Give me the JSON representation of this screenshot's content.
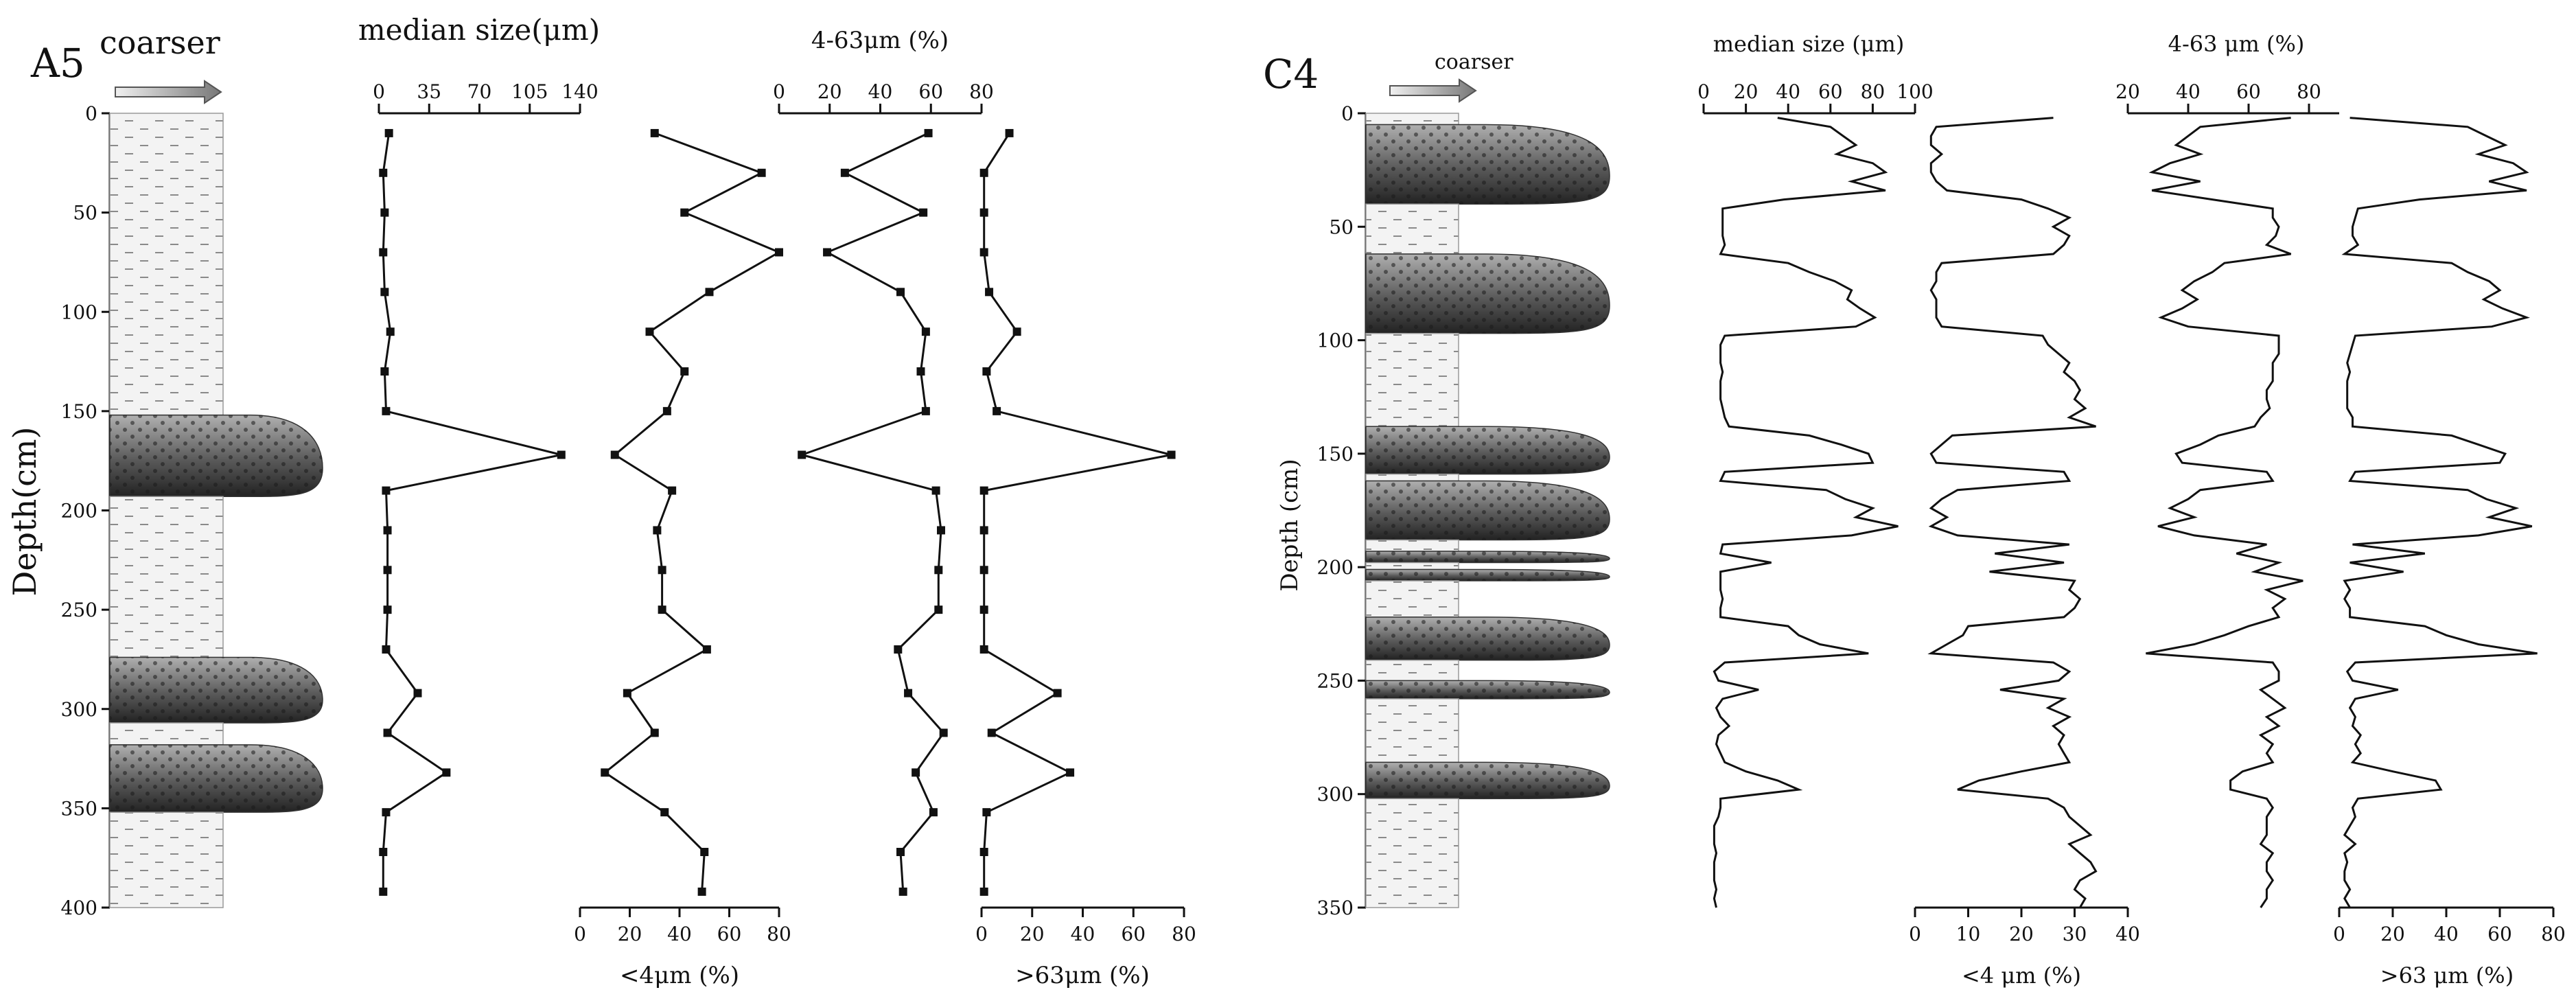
{
  "chart_data": [
    {
      "id": "A5",
      "type": "line",
      "panel_label": "A5",
      "coarser_label": "coarser",
      "ylabel": "Depth(cm)",
      "ylim": [
        0,
        400
      ],
      "yticks": [
        0,
        50,
        100,
        150,
        200,
        250,
        300,
        350,
        400
      ],
      "lithology": [
        {
          "type": "fine",
          "from": 0,
          "to": 152
        },
        {
          "type": "sand",
          "from": 152,
          "to": 193
        },
        {
          "type": "fine",
          "from": 193,
          "to": 274
        },
        {
          "type": "sand",
          "from": 274,
          "to": 307
        },
        {
          "type": "fine",
          "from": 307,
          "to": 318
        },
        {
          "type": "sand",
          "from": 318,
          "to": 352
        },
        {
          "type": "fine",
          "from": 352,
          "to": 400
        }
      ],
      "depth": [
        10,
        30,
        50,
        70,
        90,
        110,
        130,
        150,
        172,
        190,
        210,
        230,
        250,
        270,
        292,
        312,
        332,
        352,
        372,
        392
      ],
      "panels": [
        {
          "name": "median size",
          "label": "median size(μm)",
          "label_pos": "top",
          "xlim": [
            0,
            140
          ],
          "xticks": [
            0,
            35,
            70,
            105,
            140
          ],
          "values": [
            7,
            3,
            4,
            3,
            4,
            8,
            4,
            5,
            127,
            5,
            6,
            6,
            6,
            5,
            27,
            6,
            47,
            5,
            3,
            3
          ]
        },
        {
          "name": "<4μm",
          "label": "<4μm (%)",
          "label_pos": "bottom",
          "xlim": [
            0,
            80
          ],
          "xticks": [
            0,
            20,
            40,
            60,
            80
          ],
          "values": [
            30,
            73,
            42,
            80,
            52,
            28,
            42,
            35,
            14,
            37,
            31,
            33,
            33,
            51,
            19,
            30,
            10,
            34,
            50,
            49
          ]
        },
        {
          "name": "4-63μm",
          "label": "4-63μm (%)",
          "label_pos": "top",
          "xlim": [
            0,
            80
          ],
          "xticks": [
            0,
            20,
            40,
            60,
            80
          ],
          "values": [
            59,
            26,
            57,
            19,
            48,
            58,
            56,
            58,
            9,
            62,
            64,
            63,
            63,
            47,
            51,
            65,
            54,
            61,
            48,
            49
          ]
        },
        {
          "name": ">63μm",
          "label": ">63μm (%)",
          "label_pos": "bottom",
          "xlim": [
            0,
            80
          ],
          "xticks": [
            0,
            20,
            40,
            60,
            80
          ],
          "values": [
            11,
            1,
            1,
            1,
            3,
            14,
            2,
            6,
            75,
            1,
            1,
            1,
            1,
            1,
            30,
            4,
            35,
            2,
            1,
            1
          ]
        }
      ]
    },
    {
      "id": "C4",
      "type": "line",
      "panel_label": "C4",
      "coarser_label": "coarser",
      "ylabel": "Depth (cm)",
      "ylim": [
        0,
        350
      ],
      "yticks": [
        0,
        50,
        100,
        150,
        200,
        250,
        300,
        350
      ],
      "lithology": [
        {
          "type": "fine",
          "from": 0,
          "to": 5
        },
        {
          "type": "sand",
          "from": 5,
          "to": 40
        },
        {
          "type": "fine",
          "from": 40,
          "to": 62
        },
        {
          "type": "sand",
          "from": 62,
          "to": 97
        },
        {
          "type": "fine",
          "from": 97,
          "to": 138
        },
        {
          "type": "sand",
          "from": 138,
          "to": 159
        },
        {
          "type": "fine",
          "from": 159,
          "to": 162
        },
        {
          "type": "sand",
          "from": 162,
          "to": 188
        },
        {
          "type": "fine",
          "from": 188,
          "to": 193
        },
        {
          "type": "sand",
          "from": 193,
          "to": 198
        },
        {
          "type": "fine",
          "from": 198,
          "to": 201
        },
        {
          "type": "sand",
          "from": 201,
          "to": 206
        },
        {
          "type": "fine",
          "from": 206,
          "to": 222
        },
        {
          "type": "sand",
          "from": 222,
          "to": 241
        },
        {
          "type": "fine",
          "from": 241,
          "to": 250
        },
        {
          "type": "sand",
          "from": 250,
          "to": 258
        },
        {
          "type": "fine",
          "from": 258,
          "to": 286
        },
        {
          "type": "sand",
          "from": 286,
          "to": 302
        },
        {
          "type": "fine",
          "from": 302,
          "to": 350
        }
      ],
      "depth": [
        2,
        6,
        10,
        14,
        18,
        22,
        26,
        30,
        34,
        38,
        42,
        46,
        50,
        54,
        58,
        62,
        66,
        70,
        74,
        78,
        82,
        86,
        90,
        94,
        98,
        102,
        106,
        110,
        114,
        118,
        122,
        126,
        130,
        134,
        138,
        142,
        146,
        150,
        154,
        158,
        162,
        166,
        170,
        174,
        178,
        182,
        186,
        190,
        194,
        198,
        202,
        206,
        210,
        214,
        218,
        222,
        226,
        230,
        234,
        238,
        242,
        246,
        250,
        254,
        258,
        262,
        266,
        270,
        274,
        278,
        282,
        286,
        290,
        294,
        298,
        302,
        306,
        310,
        314,
        318,
        322,
        326,
        330,
        334,
        338,
        342,
        346,
        350
      ],
      "panels": [
        {
          "name": "median size",
          "label": "median size (μm)",
          "label_pos": "top",
          "xlim": [
            0,
            100
          ],
          "xticks": [
            0,
            20,
            40,
            60,
            80,
            100
          ],
          "values": [
            35,
            60,
            66,
            72,
            63,
            80,
            86,
            70,
            86,
            38,
            9,
            9,
            9,
            9,
            10,
            8,
            40,
            50,
            62,
            70,
            68,
            74,
            81,
            72,
            10,
            8,
            8,
            8,
            9,
            8,
            8,
            8,
            9,
            10,
            12,
            50,
            65,
            78,
            80,
            10,
            8,
            58,
            67,
            80,
            72,
            92,
            70,
            9,
            8,
            32,
            8,
            8,
            8,
            9,
            8,
            8,
            40,
            45,
            55,
            78,
            10,
            5,
            7,
            26,
            9,
            6,
            8,
            12,
            7,
            6,
            8,
            10,
            20,
            35,
            45,
            8,
            8,
            7,
            5,
            5,
            5,
            6,
            5,
            5,
            5,
            6,
            5,
            6
          ]
        },
        {
          "name": "<4 μm",
          "label": "<4 μm (%)",
          "label_pos": "bottom",
          "xlim": [
            0,
            40
          ],
          "xticks": [
            0,
            10,
            20,
            30,
            40
          ],
          "values": [
            26,
            4,
            3,
            3,
            5,
            3,
            3,
            4,
            6,
            20,
            25,
            29,
            26,
            29,
            28,
            26,
            5,
            4,
            4,
            3,
            4,
            4,
            4,
            5,
            24,
            25,
            27,
            29,
            28,
            30,
            31,
            30,
            32,
            29,
            34,
            7,
            5,
            3,
            4,
            28,
            29,
            8,
            5,
            3,
            6,
            3,
            8,
            29,
            15,
            28,
            14,
            30,
            29,
            31,
            30,
            28,
            10,
            9,
            6,
            3,
            26,
            29,
            27,
            16,
            28,
            25,
            29,
            26,
            28,
            27,
            28,
            29,
            20,
            12,
            8,
            25,
            28,
            29,
            31,
            33,
            29,
            31,
            33,
            34,
            31,
            30,
            32,
            31
          ]
        },
        {
          "name": "4-63 μm",
          "label": "4-63 μm (%)",
          "label_pos": "top",
          "xlim": [
            20,
            90
          ],
          "xticks": [
            20,
            40,
            60,
            80
          ],
          "values": [
            74,
            44,
            40,
            36,
            44,
            34,
            28,
            44,
            28,
            48,
            68,
            68,
            70,
            69,
            66,
            74,
            52,
            48,
            42,
            38,
            43,
            38,
            31,
            40,
            70,
            70,
            70,
            68,
            68,
            68,
            66,
            66,
            67,
            64,
            62,
            50,
            44,
            36,
            38,
            66,
            68,
            44,
            40,
            34,
            42,
            30,
            42,
            66,
            56,
            70,
            62,
            78,
            66,
            72,
            68,
            70,
            60,
            52,
            42,
            26,
            68,
            70,
            70,
            64,
            68,
            72,
            66,
            70,
            64,
            68,
            66,
            68,
            58,
            54,
            54,
            66,
            68,
            66,
            66,
            66,
            64,
            68,
            66,
            66,
            68,
            66,
            66,
            64
          ]
        },
        {
          "name": ">63 μm",
          "label": ">63 μm (%)",
          "label_pos": "bottom",
          "xlim": [
            0,
            80
          ],
          "xticks": [
            0,
            20,
            40,
            60,
            80
          ],
          "values": [
            4,
            48,
            55,
            62,
            52,
            65,
            70,
            56,
            70,
            30,
            7,
            6,
            5,
            5,
            7,
            2,
            42,
            48,
            56,
            60,
            54,
            61,
            70,
            57,
            6,
            5,
            4,
            3,
            4,
            3,
            3,
            3,
            3,
            5,
            5,
            42,
            52,
            62,
            60,
            6,
            4,
            48,
            55,
            66,
            56,
            72,
            52,
            5,
            32,
            4,
            24,
            2,
            4,
            2,
            4,
            4,
            32,
            40,
            52,
            74,
            6,
            3,
            5,
            22,
            6,
            4,
            6,
            5,
            8,
            6,
            8,
            5,
            20,
            36,
            38,
            7,
            5,
            6,
            4,
            2,
            6,
            2,
            3,
            2,
            2,
            4,
            2,
            4
          ]
        }
      ]
    }
  ]
}
